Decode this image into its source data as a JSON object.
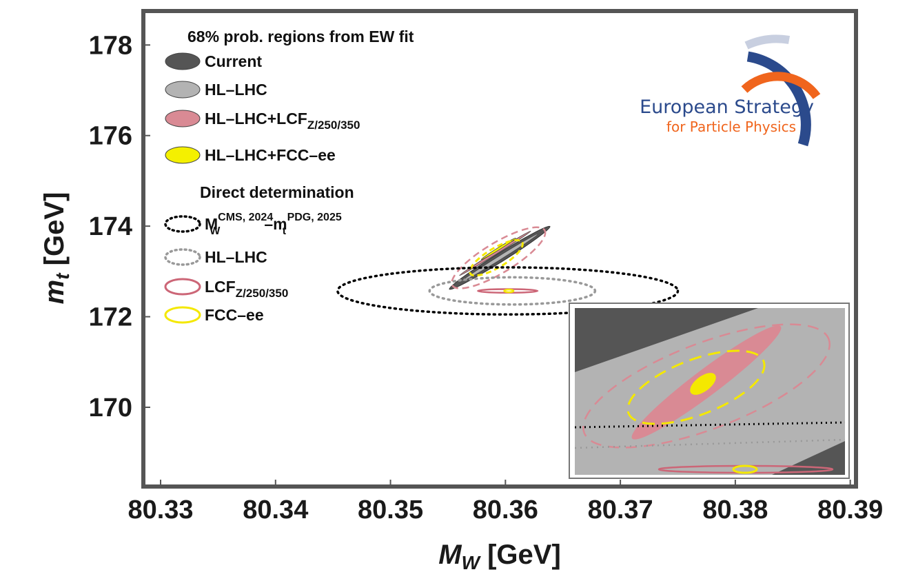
{
  "chart_data": {
    "type": "scatter",
    "xlabel": "M_W [GeV]",
    "xlabel_main": "M",
    "xlabel_sub": "W",
    "xlabel_unit": " [GeV]",
    "ylabel": "m_t [GeV]",
    "ylabel_main": "m",
    "ylabel_sub": "t",
    "ylabel_unit": " [GeV]",
    "xlim": [
      80.3285,
      80.3905
    ],
    "ylim": [
      168.25,
      178.75
    ],
    "xticks": [
      "80.33",
      "80.34",
      "80.35",
      "80.36",
      "80.37",
      "80.38",
      "80.39"
    ],
    "yticks": [
      "170",
      "172",
      "174",
      "176",
      "178"
    ],
    "legend_placement": "top-left",
    "legend_title": "68% prob. regions from EW fit",
    "legend_fit_entries": [
      {
        "label": "Current",
        "sub": "",
        "color": "#555555"
      },
      {
        "label": "HL–LHC",
        "sub": "",
        "color": "#b3b3b3"
      },
      {
        "label": "HL–LHC+LCF",
        "sub": "Z/250/350",
        "color": "#d98a94"
      },
      {
        "label": "HL–LHC+FCC–ee",
        "sub": "",
        "color": "#f4f000"
      }
    ],
    "legend_direct_title": "Direct determination",
    "legend_direct_entries": [
      {
        "main": "M",
        "sub": "W",
        "sup": "CMS, 2024",
        "mid": "–m",
        "sub2": "t",
        "sup2": "PDG, 2025",
        "color": "#000000"
      },
      {
        "main": "HL–LHC",
        "sub": "",
        "sup": "",
        "mid": "",
        "sub2": "",
        "sup2": "",
        "color": "#999999"
      },
      {
        "main": "LCF",
        "sub": "Z/250/350",
        "sup": "",
        "mid": "",
        "sub2": "",
        "sup2": "",
        "color": "#cc6677"
      },
      {
        "main": "FCC–ee",
        "sub": "",
        "sup": "",
        "mid": "",
        "sub2": "",
        "sup2": "",
        "color": "#f4e800"
      }
    ],
    "fit_regions": [
      {
        "name": "Current",
        "cx": 80.3595,
        "cy": 173.3,
        "a": 0.0035,
        "b": 0.00038,
        "fill": "#555555"
      },
      {
        "name": "HL–LHC",
        "cx": 80.3595,
        "cy": 173.3,
        "a": 0.0033,
        "b": 0.00016,
        "fill": "#b3b3b3"
      },
      {
        "name": "HL–LHC+LCF",
        "cx": 80.3591,
        "cy": 173.4,
        "a": 0.0031,
        "b": 0.00011,
        "fill": "#d98a94"
      },
      {
        "name": "HL–LHC+FCC–ee",
        "cx": 80.3594,
        "cy": 173.5,
        "a": 0.0015,
        "b": 0.0001,
        "fill": "#f4f000"
      }
    ],
    "direct_regions": [
      {
        "name": "CMS 2024 – PDG 2025",
        "cx": 80.3602,
        "cy": 172.57,
        "rx": 0.0148,
        "ry": 0.52,
        "color": "#000000",
        "dash": "dotted"
      },
      {
        "name": "HL–LHC",
        "cx": 80.3606,
        "cy": 172.57,
        "rx": 0.0072,
        "ry": 0.3,
        "color": "#999999",
        "dash": "dotted"
      },
      {
        "name": "LCF",
        "cx": 80.3602,
        "cy": 172.57,
        "rx": 0.0026,
        "ry": 0.04,
        "color": "#cc6677",
        "dash": "solid"
      },
      {
        "name": "FCC–ee",
        "cx": 80.3603,
        "cy": 172.57,
        "rx": 0.0004,
        "ry": 0.03,
        "color": "#f4e800",
        "dash": "solid"
      }
    ],
    "logo_line1": "European Strategy",
    "logo_line2": "for Particle Physics",
    "has_inset": true
  }
}
